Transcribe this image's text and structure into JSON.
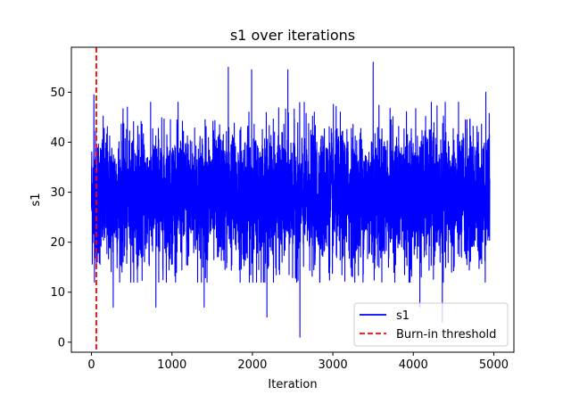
{
  "chart_data": {
    "type": "line",
    "title": "s1 over iterations",
    "xlabel": "Iteration",
    "ylabel": "s1",
    "xlim": [
      -250,
      5250
    ],
    "ylim": [
      -2,
      59
    ],
    "xticks": [
      0,
      1000,
      2000,
      3000,
      4000,
      5000
    ],
    "yticks": [
      0,
      10,
      20,
      30,
      40,
      50
    ],
    "xtick_labels": [
      "0",
      "1000",
      "2000",
      "3000",
      "4000",
      "5000"
    ],
    "ytick_labels": [
      "0",
      "10",
      "20",
      "30",
      "40",
      "50"
    ],
    "grid": false,
    "legend_position": "lower-right",
    "series": [
      {
        "name": "s1",
        "color": "#0000ff",
        "style": "solid",
        "n_points": 4950,
        "x_range": [
          0,
          4950
        ],
        "mean": 29,
        "spread": 6.5,
        "typical_range": [
          15,
          45
        ],
        "notable_points": [
          {
            "x": 30,
            "y": 49.5
          },
          {
            "x": 60,
            "y": 15
          },
          {
            "x": 270,
            "y": 7
          },
          {
            "x": 800,
            "y": 7
          },
          {
            "x": 1400,
            "y": 7
          },
          {
            "x": 1700,
            "y": 55
          },
          {
            "x": 1990,
            "y": 54.5
          },
          {
            "x": 2180,
            "y": 5
          },
          {
            "x": 2440,
            "y": 54.5
          },
          {
            "x": 2590,
            "y": 1
          },
          {
            "x": 3500,
            "y": 56
          },
          {
            "x": 4080,
            "y": 7
          },
          {
            "x": 4360,
            "y": 4
          },
          {
            "x": 4900,
            "y": 50
          }
        ]
      },
      {
        "name": "Burn-in threshold",
        "color": "#ff0000",
        "style": "dashed",
        "type": "vline",
        "x": 60
      }
    ]
  }
}
